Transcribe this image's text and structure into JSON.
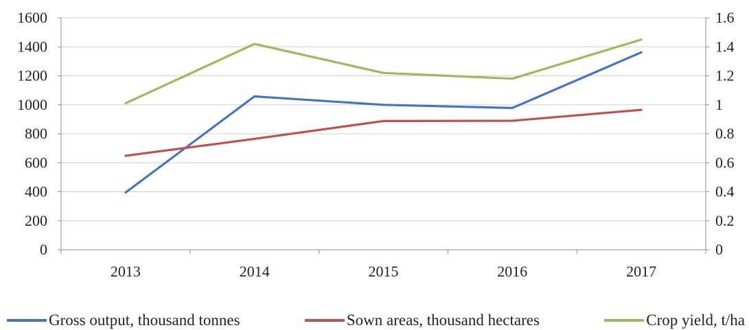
{
  "chart_data": {
    "type": "line",
    "title": "",
    "categories": [
      "2013",
      "2014",
      "2015",
      "2016",
      "2017"
    ],
    "left_axis": {
      "ylim": [
        0,
        1600
      ],
      "ticks": [
        0,
        200,
        400,
        600,
        800,
        1000,
        1200,
        1400,
        1600
      ],
      "tick_labels": [
        "0",
        "200",
        "400",
        "600",
        "800",
        "1000",
        "1200",
        "1400",
        "1600"
      ]
    },
    "right_axis": {
      "ylim": [
        0,
        1.6
      ],
      "ticks": [
        0,
        0.2,
        0.4,
        0.6,
        0.8,
        1,
        1.2,
        1.4,
        1.6
      ],
      "tick_labels": [
        "0",
        "0.2",
        "0.4",
        "0.6",
        "0.8",
        "1",
        "1.2",
        "1.4",
        "1.6"
      ]
    },
    "grid": true,
    "legend_position": "bottom",
    "series": [
      {
        "name": "Gross output, thousand tonnes",
        "axis": "left",
        "color": "#4472c4",
        "values": [
          395,
          1058,
          1000,
          978,
          1362
        ]
      },
      {
        "name": "Sown areas, thousand hectares",
        "axis": "left",
        "color": "#c0504d",
        "values": [
          648,
          765,
          888,
          890,
          965
        ]
      },
      {
        "name": "Crop yield, t/ha",
        "axis": "right",
        "color": "#9bbb59",
        "values": [
          1.01,
          1.42,
          1.22,
          1.18,
          1.45
        ]
      }
    ]
  }
}
